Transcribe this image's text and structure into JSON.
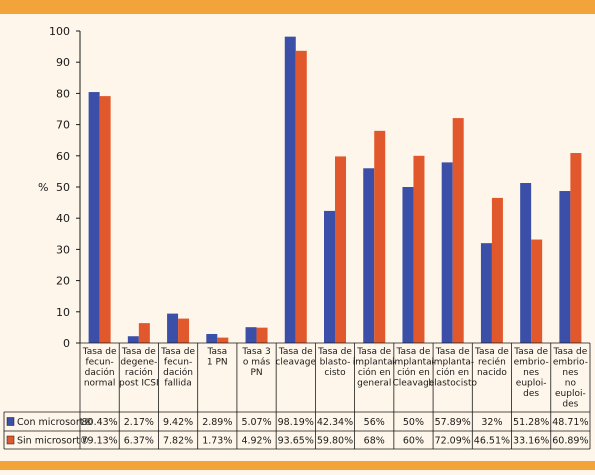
{
  "chart_data": {
    "type": "bar",
    "ylabel": "%",
    "ylim": [
      0,
      100
    ],
    "yticks": [
      0,
      10,
      20,
      30,
      40,
      50,
      60,
      70,
      80,
      90,
      100
    ],
    "grid": false,
    "categories": [
      [
        "Tasa de",
        "fecun-",
        "dación",
        "normal"
      ],
      [
        "Tasa de",
        "degene-",
        "ración",
        "post ICSI"
      ],
      [
        "Tasa de",
        "fecun-",
        "dación",
        "fallida"
      ],
      [
        "Tasa",
        "1 PN"
      ],
      [
        "Tasa 3",
        "o más",
        "PN"
      ],
      [
        "Tasa de",
        "cleavage"
      ],
      [
        "Tasa de",
        "blasto-",
        "cisto"
      ],
      [
        "Tasa de",
        "implanta-",
        "ción en",
        "general"
      ],
      [
        "Tasa de",
        "implanta-",
        "ción en",
        "Cleavage"
      ],
      [
        "Tasa de",
        "implanta-",
        "ción en",
        "blastocisto"
      ],
      [
        "Tasa de",
        "recién",
        "nacido"
      ],
      [
        "Tasa de",
        "embrio-",
        "nes",
        "euploi-",
        "des"
      ],
      [
        "Tasa de",
        "embrio-",
        "nes",
        "no",
        "euploi-",
        "des"
      ]
    ],
    "series": [
      {
        "name": "Con microsort®",
        "color": "#3b4fa8",
        "values": [
          80.43,
          2.17,
          9.42,
          2.89,
          5.07,
          98.19,
          42.34,
          56,
          50,
          57.89,
          32,
          51.28,
          48.71
        ],
        "labels": [
          "80.43%",
          "2.17%",
          "9.42%",
          "2.89%",
          "5.07%",
          "98.19%",
          "42.34%",
          "56%",
          "50%",
          "57.89%",
          "32%",
          "51.28%",
          "48.71%"
        ]
      },
      {
        "name": "Sin microsort®",
        "color": "#e0582b",
        "values": [
          79.13,
          6.37,
          7.82,
          1.73,
          4.92,
          93.65,
          59.8,
          68,
          60,
          72.09,
          46.51,
          33.16,
          60.89
        ],
        "labels": [
          "79.13%",
          "6.37%",
          "7.82%",
          "1.73%",
          "4.92%",
          "93.65%",
          "59.80%",
          "68%",
          "60%",
          "72.09%",
          "46.51%",
          "33.16%",
          "60.89%"
        ]
      }
    ]
  }
}
